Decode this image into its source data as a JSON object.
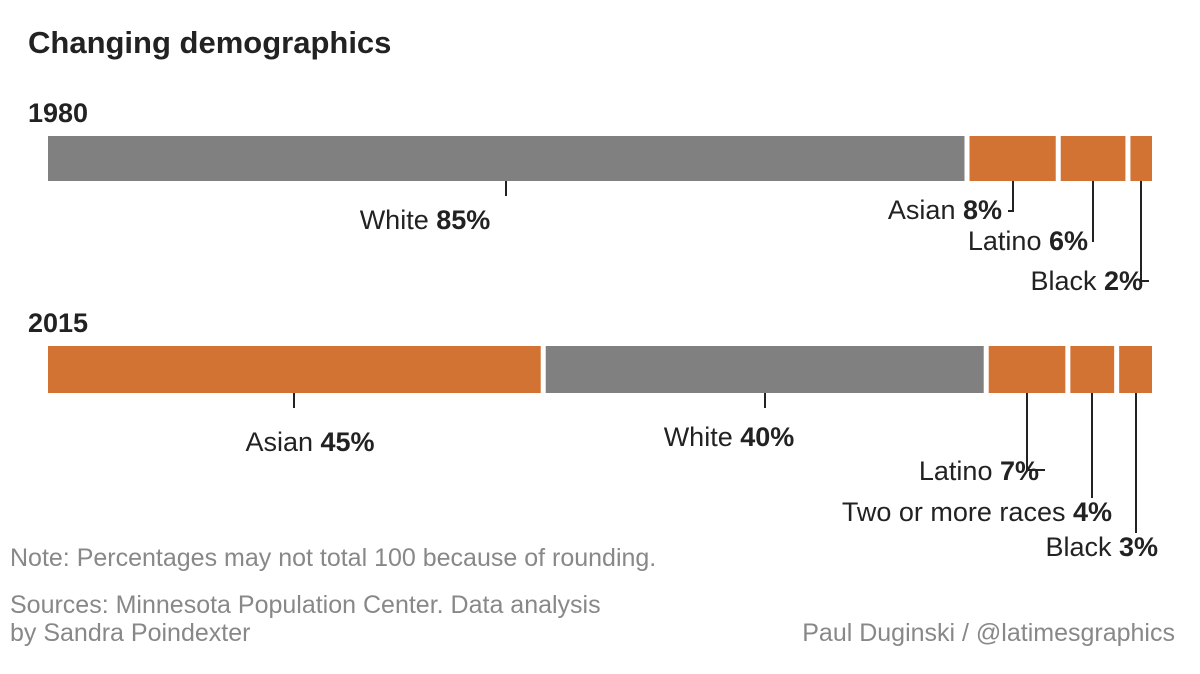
{
  "title": "Changing demographics",
  "chart_data": {
    "type": "bar",
    "subtype": "stacked-100-horizontal",
    "title": "Changing demographics",
    "colors": {
      "white": "#808080",
      "other": "#d27333"
    },
    "rows": [
      {
        "label": "1980",
        "segments": [
          {
            "name": "White",
            "value": 85,
            "display": "85%",
            "color": "#808080"
          },
          {
            "name": "Asian",
            "value": 8,
            "display": "8%",
            "color": "#d27333"
          },
          {
            "name": "Latino",
            "value": 6,
            "display": "6%",
            "color": "#d27333"
          },
          {
            "name": "Black",
            "value": 2,
            "display": "2%",
            "color": "#d27333"
          }
        ]
      },
      {
        "label": "2015",
        "segments": [
          {
            "name": "Asian",
            "value": 45,
            "display": "45%",
            "color": "#d27333"
          },
          {
            "name": "White",
            "value": 40,
            "display": "40%",
            "color": "#808080"
          },
          {
            "name": "Latino",
            "value": 7,
            "display": "7%",
            "color": "#d27333"
          },
          {
            "name": "Two or more races",
            "value": 4,
            "display": "4%",
            "color": "#d27333"
          },
          {
            "name": "Black",
            "value": 3,
            "display": "3%",
            "color": "#d27333"
          }
        ]
      }
    ]
  },
  "note": "Note: Percentages may not total 100 because of rounding.",
  "sources_line1": "Sources: Minnesota Population Center. Data analysis",
  "sources_line2": "by Sandra Poindexter",
  "credit": "Paul Duginski / @latimesgraphics"
}
